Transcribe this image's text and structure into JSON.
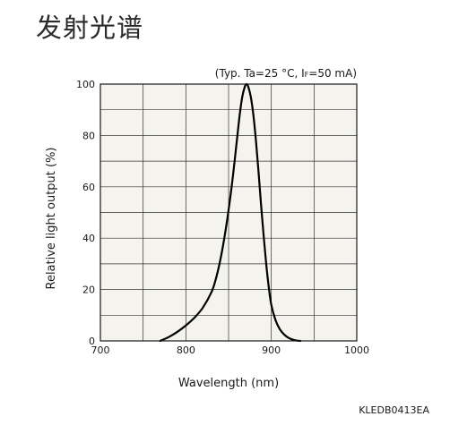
{
  "page": {
    "title": "发射光谱",
    "condition_prefix": "(Typ. Ta=25 °C, I",
    "condition_sub": "F",
    "condition_suffix": "=50 mA)",
    "figure_code": "KLEDB0413EA"
  },
  "colors": {
    "plot_background": "#f4f3ee",
    "grid": "#333333",
    "curve": "#000000"
  },
  "chart_data": {
    "type": "line",
    "title": "",
    "xlabel": "Wavelength (nm)",
    "ylabel": "Relative light output (%)",
    "xlim": [
      700,
      1000
    ],
    "ylim": [
      0,
      100
    ],
    "x_ticks": [
      700,
      800,
      900,
      1000
    ],
    "y_ticks": [
      0,
      20,
      40,
      60,
      80,
      100
    ],
    "grid": true,
    "minor_grid_x_step": 50,
    "minor_grid_y_step": 10,
    "series": [
      {
        "x": [
          770,
          780,
          790,
          800,
          810,
          820,
          830,
          835,
          840,
          845,
          850,
          855,
          860,
          863,
          866,
          869,
          871,
          873,
          876,
          879,
          882,
          885,
          888,
          891,
          894,
          897,
          900,
          905,
          910,
          915,
          920,
          925,
          930,
          934
        ],
        "y": [
          0,
          1.5,
          3.5,
          6,
          9,
          13,
          19,
          24,
          31,
          40,
          51,
          64,
          79,
          88,
          95,
          99,
          100,
          99,
          95,
          88,
          78,
          66,
          53,
          41,
          30,
          21,
          14,
          8,
          4.5,
          2.5,
          1.2,
          0.5,
          0.1,
          0
        ]
      }
    ]
  }
}
